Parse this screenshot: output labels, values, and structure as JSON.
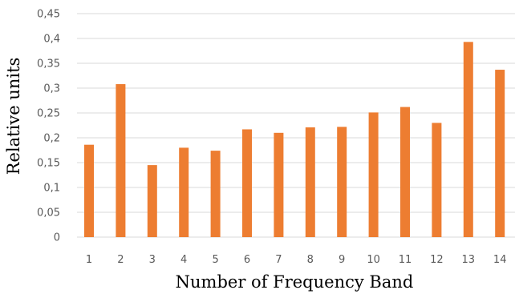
{
  "chart_data": {
    "type": "bar",
    "title": "",
    "xlabel": "Number of Frequency Band",
    "ylabel": "Relative units",
    "categories": [
      "1",
      "2",
      "3",
      "4",
      "5",
      "6",
      "7",
      "8",
      "9",
      "10",
      "11",
      "12",
      "13",
      "14"
    ],
    "values": [
      0.186,
      0.308,
      0.145,
      0.18,
      0.174,
      0.217,
      0.21,
      0.221,
      0.222,
      0.251,
      0.262,
      0.23,
      0.393,
      0.337
    ],
    "ylim": [
      0,
      0.45
    ],
    "yticks": [
      0,
      0.05,
      0.1,
      0.15,
      0.2,
      0.25,
      0.3,
      0.35,
      0.4,
      0.45
    ],
    "ytick_labels": [
      "0",
      "0,05",
      "0,1",
      "0,15",
      "0,2",
      "0,25",
      "0,3",
      "0,35",
      "0,4",
      "0,45"
    ],
    "grid": true,
    "legend": "none",
    "bar_color": "#ED7D31",
    "grid_color": "#D9D9D9"
  }
}
